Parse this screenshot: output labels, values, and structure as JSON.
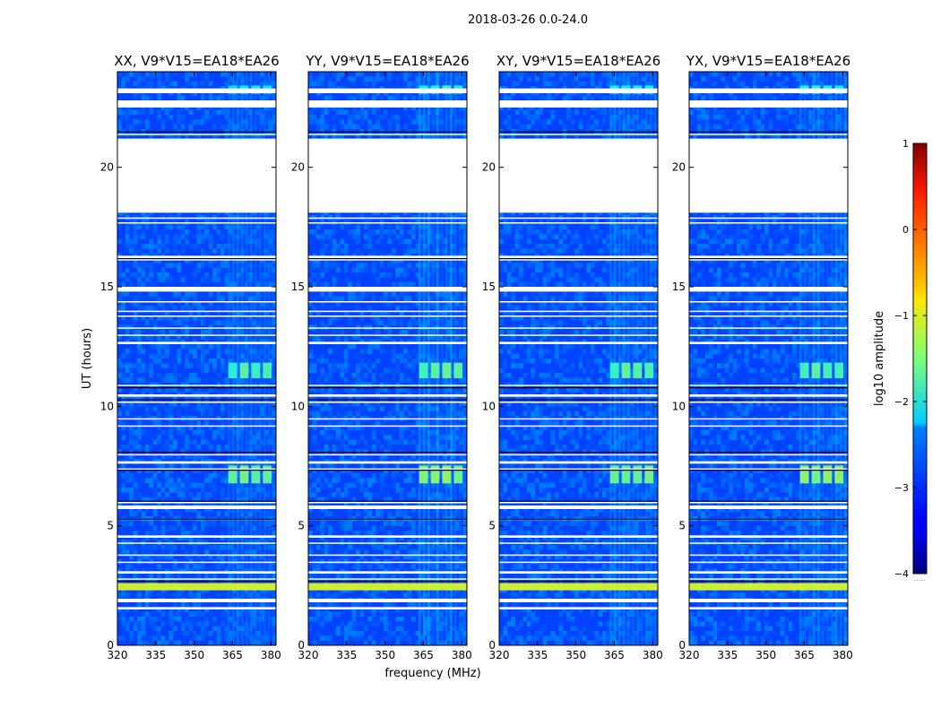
{
  "figure_title": "2018-03-26 0.0-24.0",
  "xlabel": "frequency (MHz)",
  "ylabel": "UT (hours)",
  "colorbar": {
    "label": "log10 amplitude",
    "ticks": [
      "1",
      "0",
      "−1",
      "−2",
      "−3",
      "−4"
    ],
    "range": [
      -4,
      1
    ],
    "underflow_mark": "....."
  },
  "chart_data": {
    "type": "heatmap",
    "colormap": "jet",
    "x": {
      "label": "frequency (MHz)",
      "range": [
        320,
        382
      ],
      "ticks": [
        320,
        335,
        350,
        365,
        380
      ],
      "tick_labels": [
        "320",
        "335",
        "350",
        "365",
        "380"
      ]
    },
    "y": {
      "label": "UT (hours)",
      "range": [
        0,
        24
      ],
      "ticks": [
        0,
        5,
        10,
        15,
        20
      ],
      "tick_labels": [
        "0",
        "5",
        "10",
        "15",
        "20"
      ]
    },
    "z": {
      "label": "log10 amplitude",
      "range": [
        -4,
        1
      ]
    },
    "panels": [
      {
        "title": "XX, V9*V15=EA18*EA26",
        "burst_strength": 0.5
      },
      {
        "title": "YY, V9*V15=EA18*EA26",
        "burst_strength": 0.8
      },
      {
        "title": "XY, V9*V15=EA18*EA26",
        "burst_strength": 0.6
      },
      {
        "title": "YX, V9*V15=EA18*EA26",
        "burst_strength": 0.7
      }
    ],
    "flagged_hours": [
      [
        18.1,
        21.2
      ],
      [
        16.1,
        16.3
      ],
      [
        14.8,
        15.0
      ],
      [
        22.5,
        22.8
      ],
      [
        23.1,
        23.3
      ],
      [
        12.6,
        12.7
      ],
      [
        10.4,
        10.5
      ],
      [
        7.6,
        7.7
      ],
      [
        5.7,
        5.85
      ],
      [
        4.5,
        4.6
      ],
      [
        3.0,
        3.1
      ],
      [
        1.8,
        1.95
      ],
      [
        1.5,
        1.6
      ]
    ],
    "thin_gap_hours": [
      21.4,
      17.9,
      17.7,
      14.4,
      14.0,
      13.8,
      13.3,
      13.0,
      10.9,
      10.2,
      9.5,
      9.2,
      8.0,
      7.4,
      6.0,
      5.3,
      4.3,
      3.8,
      3.5,
      2.8
    ],
    "dark_line_hours": [
      21.5,
      16.2,
      10.8,
      10.3,
      8.1,
      7.35,
      6.05,
      5.3,
      2.7
    ],
    "rfi_bursts": [
      {
        "t_start": 6.7,
        "t_end": 7.6,
        "f_start": 363,
        "f_end": 381,
        "level": -1.3
      },
      {
        "t_start": 11.1,
        "t_end": 11.9,
        "f_start": 363,
        "f_end": 381,
        "level": -1.5
      },
      {
        "t_start": 2.3,
        "t_end": 2.6,
        "f_start": 320,
        "f_end": 382,
        "level": -0.8
      },
      {
        "t_start": 23.0,
        "t_end": 23.5,
        "f_start": 363,
        "f_end": 381,
        "level": -1.8
      }
    ],
    "rfi_band_mhz": [
      363,
      381
    ]
  }
}
